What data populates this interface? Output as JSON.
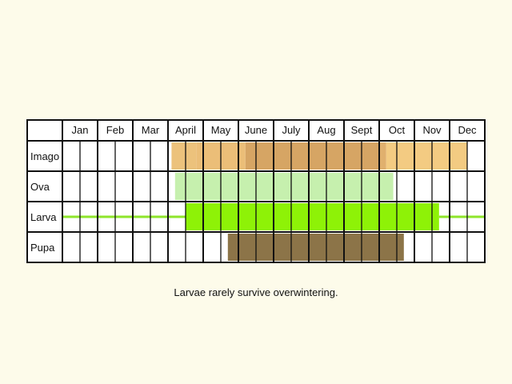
{
  "months": [
    "Jan",
    "Feb",
    "Mar",
    "April",
    "May",
    "June",
    "July",
    "Aug",
    "Sept",
    "Oct",
    "Nov",
    "Dec"
  ],
  "stages": [
    {
      "label": "Imago",
      "segments": [
        {
          "from": 3.1,
          "to": 3.8,
          "color": "#ecc27c"
        },
        {
          "from": 3.8,
          "to": 5.2,
          "color": "#ebbe78"
        },
        {
          "from": 5.2,
          "to": 9.0,
          "color": "#d6a564"
        },
        {
          "from": 9.0,
          "to": 9.2,
          "color": "#e0b06e"
        },
        {
          "from": 9.2,
          "to": 11.5,
          "color": "#f3cb82"
        }
      ],
      "line": []
    },
    {
      "label": "Ova",
      "segments": [
        {
          "from": 3.2,
          "to": 9.4,
          "color": "#c6f0ae"
        }
      ],
      "line": []
    },
    {
      "label": "Larva",
      "segments": [
        {
          "from": 3.5,
          "to": 10.7,
          "color": "#8ef207"
        }
      ],
      "line": [
        [
          0,
          3.5
        ],
        [
          10.7,
          12
        ]
      ],
      "line_color": "#8ee52b"
    },
    {
      "label": "Pupa",
      "segments": [
        {
          "from": 4.7,
          "to": 9.7,
          "color": "#8c7448"
        }
      ],
      "line": []
    }
  ],
  "caption": "Larvae rarely survive overwintering."
}
